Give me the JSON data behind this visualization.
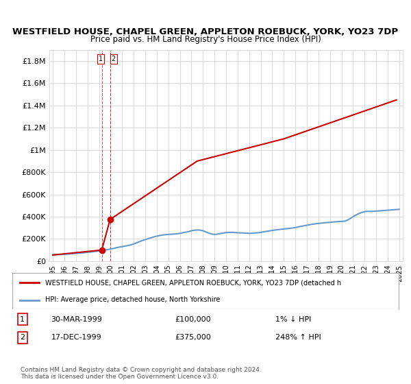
{
  "title": "WESTFIELD HOUSE, CHAPEL GREEN, APPLETON ROEBUCK, YORK, YO23 7DP",
  "subtitle": "Price paid vs. HM Land Registry's House Price Index (HPI)",
  "title_fontsize": 10,
  "subtitle_fontsize": 9,
  "background_color": "#ffffff",
  "grid_color": "#dddddd",
  "ylim": [
    0,
    1900000
  ],
  "yticks": [
    0,
    200000,
    400000,
    600000,
    800000,
    1000000,
    1200000,
    1400000,
    1600000,
    1800000
  ],
  "ytick_labels": [
    "£0",
    "£200K",
    "£400K",
    "£600K",
    "£800K",
    "£1M",
    "£1.2M",
    "£1.4M",
    "£1.6M",
    "£1.8M"
  ],
  "x_start_year": 1995,
  "x_end_year": 2025,
  "xtick_years": [
    1995,
    1996,
    1997,
    1998,
    1999,
    2000,
    2001,
    2002,
    2003,
    2004,
    2005,
    2006,
    2007,
    2008,
    2009,
    2010,
    2011,
    2012,
    2013,
    2014,
    2015,
    2016,
    2017,
    2018,
    2019,
    2020,
    2021,
    2022,
    2023,
    2024,
    2025
  ],
  "hpi_color": "#6699cc",
  "property_color": "#cc0000",
  "dashed_vertical_color": "#cc0000",
  "purchase1_x": 1999.24,
  "purchase1_y": 100000,
  "purchase2_x": 1999.96,
  "purchase2_y": 375000,
  "legend_property": "WESTFIELD HOUSE, CHAPEL GREEN, APPLETON ROEBUCK, YORK, YO23 7DP (detached h",
  "legend_hpi": "HPI: Average price, detached house, North Yorkshire",
  "row1_num": "1",
  "row1_date": "30-MAR-1999",
  "row1_price": "£100,000",
  "row1_hpi": "1% ↓ HPI",
  "row2_num": "2",
  "row2_date": "17-DEC-1999",
  "row2_price": "£375,000",
  "row2_hpi": "248% ↑ HPI",
  "footer": "Contains HM Land Registry data © Crown copyright and database right 2024.\nThis data is licensed under the Open Government Licence v3.0.",
  "hpi_data_x": [
    1995.0,
    1995.25,
    1995.5,
    1995.75,
    1996.0,
    1996.25,
    1996.5,
    1996.75,
    1997.0,
    1997.25,
    1997.5,
    1997.75,
    1998.0,
    1998.25,
    1998.5,
    1998.75,
    1999.0,
    1999.25,
    1999.5,
    1999.75,
    2000.0,
    2000.25,
    2000.5,
    2000.75,
    2001.0,
    2001.25,
    2001.5,
    2001.75,
    2002.0,
    2002.25,
    2002.5,
    2002.75,
    2003.0,
    2003.25,
    2003.5,
    2003.75,
    2004.0,
    2004.25,
    2004.5,
    2004.75,
    2005.0,
    2005.25,
    2005.5,
    2005.75,
    2006.0,
    2006.25,
    2006.5,
    2006.75,
    2007.0,
    2007.25,
    2007.5,
    2007.75,
    2008.0,
    2008.25,
    2008.5,
    2008.75,
    2009.0,
    2009.25,
    2009.5,
    2009.75,
    2010.0,
    2010.25,
    2010.5,
    2010.75,
    2011.0,
    2011.25,
    2011.5,
    2011.75,
    2012.0,
    2012.25,
    2012.5,
    2012.75,
    2013.0,
    2013.25,
    2013.5,
    2013.75,
    2014.0,
    2014.25,
    2014.5,
    2014.75,
    2015.0,
    2015.25,
    2015.5,
    2015.75,
    2016.0,
    2016.25,
    2016.5,
    2016.75,
    2017.0,
    2017.25,
    2017.5,
    2017.75,
    2018.0,
    2018.25,
    2018.5,
    2018.75,
    2019.0,
    2019.25,
    2019.5,
    2019.75,
    2020.0,
    2020.25,
    2020.5,
    2020.75,
    2021.0,
    2021.25,
    2021.5,
    2021.75,
    2022.0,
    2022.25,
    2022.5,
    2022.75,
    2023.0,
    2023.25,
    2023.5,
    2023.75,
    2024.0,
    2024.25,
    2024.5,
    2024.75,
    2025.0
  ],
  "hpi_data_y": [
    58000,
    59000,
    59500,
    60000,
    62000,
    64000,
    65000,
    67000,
    70000,
    72000,
    74000,
    76000,
    79000,
    82000,
    85000,
    88000,
    92000,
    96000,
    100000,
    104000,
    109000,
    114000,
    120000,
    126000,
    130000,
    135000,
    140000,
    146000,
    155000,
    165000,
    175000,
    185000,
    193000,
    202000,
    210000,
    218000,
    225000,
    230000,
    235000,
    238000,
    240000,
    242000,
    244000,
    246000,
    250000,
    255000,
    260000,
    266000,
    273000,
    278000,
    280000,
    279000,
    273000,
    263000,
    252000,
    244000,
    240000,
    243000,
    248000,
    252000,
    257000,
    258000,
    259000,
    257000,
    255000,
    254000,
    253000,
    252000,
    250000,
    251000,
    253000,
    255000,
    258000,
    263000,
    268000,
    272000,
    276000,
    280000,
    283000,
    286000,
    289000,
    292000,
    295000,
    298000,
    302000,
    308000,
    313000,
    318000,
    323000,
    328000,
    332000,
    336000,
    339000,
    342000,
    345000,
    347000,
    349000,
    352000,
    354000,
    356000,
    357000,
    359000,
    368000,
    383000,
    400000,
    415000,
    428000,
    438000,
    445000,
    448000,
    447000,
    448000,
    450000,
    452000,
    454000,
    456000,
    458000,
    460000,
    462000,
    464000,
    466000
  ],
  "property_data_x": [
    1995.0,
    1999.24,
    1999.96,
    2007.5,
    2015.0,
    2024.75
  ],
  "property_data_y": [
    55000,
    100000,
    375000,
    900000,
    1100000,
    1450000
  ]
}
